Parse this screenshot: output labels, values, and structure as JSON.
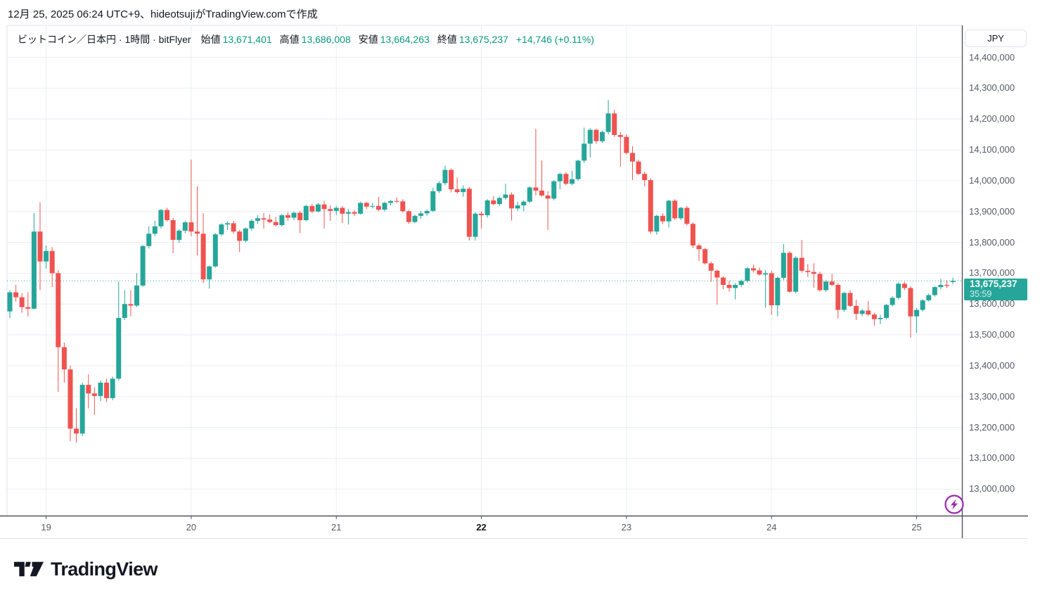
{
  "header": {
    "attribution": "12月 25, 2025 06:24 UTC+9、hideotsujiがTradingView.comで作成"
  },
  "legend": {
    "symbol_title": "ビットコイン／日本円 · 1時間 · bitFlyer",
    "items": [
      {
        "label": "始値",
        "value": "13,671,401"
      },
      {
        "label": "高値",
        "value": "13,686,008"
      },
      {
        "label": "安値",
        "value": "13,664,263"
      },
      {
        "label": "終値",
        "value": "13,675,237"
      }
    ],
    "change": "+14,746 (+0.11%)"
  },
  "price_axis": {
    "currency_button": "JPY",
    "badge": {
      "price": "13,675,237",
      "countdown": "35:59"
    }
  },
  "footer": {
    "logo_text": "TradingView"
  },
  "colors": {
    "up": "#26a69a",
    "down": "#ef5350",
    "legend_value": "#089981",
    "grid": "#e9eef4",
    "frame": "#e0e3eb",
    "axis_line": "#50535e",
    "text_dark": "#131722",
    "text_gray": "#555a64",
    "purple": "#9c27b0",
    "badge_bg": "#26a69a"
  },
  "chart_data": {
    "type": "candlestick",
    "title": "ビットコイン／日本円",
    "interval": "1時間",
    "exchange": "bitFlyer",
    "currency": "JPY",
    "last_price": 13675237,
    "last_bar": {
      "open": 13671401,
      "high": 13686008,
      "low": 13664263,
      "close": 13675237,
      "change": 14746,
      "change_pct": 0.11
    },
    "grid": true,
    "legend_position": "top-left",
    "price_ticks": [
      {
        "value": 14400000,
        "label": "14,400,000"
      },
      {
        "value": 14300000,
        "label": "14,300,000"
      },
      {
        "value": 14200000,
        "label": "14,200,000"
      },
      {
        "value": 14100000,
        "label": "14,100,000"
      },
      {
        "value": 14000000,
        "label": "14,000,000"
      },
      {
        "value": 13900000,
        "label": "13,900,000"
      },
      {
        "value": 13800000,
        "label": "13,800,000"
      },
      {
        "value": 13700000,
        "label": "13,700,000"
      },
      {
        "value": 13600000,
        "label": "13,600,000"
      },
      {
        "value": 13500000,
        "label": "13,500,000"
      },
      {
        "value": 13400000,
        "label": "13,400,000"
      },
      {
        "value": 13300000,
        "label": "13,300,000"
      },
      {
        "value": 13200000,
        "label": "13,200,000"
      },
      {
        "value": 13100000,
        "label": "13,100,000"
      },
      {
        "value": 13000000,
        "label": "13,000,000"
      }
    ],
    "visible_price_range": [
      12913000,
      14504000
    ],
    "time_ticks": [
      {
        "label": "19",
        "bold": false,
        "candle_index": 6
      },
      {
        "label": "20",
        "bold": false,
        "candle_index": 30
      },
      {
        "label": "21",
        "bold": false,
        "candle_index": 54
      },
      {
        "label": "22",
        "bold": true,
        "candle_index": 78
      },
      {
        "label": "23",
        "bold": false,
        "candle_index": 102
      },
      {
        "label": "24",
        "bold": false,
        "candle_index": 126
      },
      {
        "label": "25",
        "bold": false,
        "candle_index": 150
      }
    ],
    "candles_per_day": 24,
    "unit": "thousand JPY",
    "candles_ohlc": [
      [
        13576,
        13645,
        13555,
        13638
      ],
      [
        13638,
        13662,
        13608,
        13622
      ],
      [
        13622,
        13635,
        13572,
        13590
      ],
      [
        13590,
        13638,
        13560,
        13585
      ],
      [
        13585,
        13895,
        13582,
        13835
      ],
      [
        13835,
        13930,
        13645,
        13738
      ],
      [
        13738,
        13790,
        13715,
        13772
      ],
      [
        13772,
        13785,
        13655,
        13700
      ],
      [
        13700,
        13710,
        13315,
        13460
      ],
      [
        13460,
        13475,
        13345,
        13388
      ],
      [
        13388,
        13400,
        13155,
        13196
      ],
      [
        13196,
        13262,
        13150,
        13180
      ],
      [
        13180,
        13345,
        13172,
        13338
      ],
      [
        13338,
        13372,
        13262,
        13310
      ],
      [
        13310,
        13330,
        13240,
        13302
      ],
      [
        13302,
        13352,
        13285,
        13345
      ],
      [
        13345,
        13358,
        13282,
        13295
      ],
      [
        13295,
        13365,
        13288,
        13358
      ],
      [
        13358,
        13672,
        13352,
        13555
      ],
      [
        13555,
        13645,
        13548,
        13600
      ],
      [
        13600,
        13645,
        13560,
        13595
      ],
      [
        13595,
        13700,
        13590,
        13660
      ],
      [
        13660,
        13792,
        13655,
        13788
      ],
      [
        13788,
        13852,
        13780,
        13828
      ],
      [
        13828,
        13870,
        13820,
        13852
      ],
      [
        13852,
        13908,
        13845,
        13905
      ],
      [
        13905,
        13912,
        13868,
        13872
      ],
      [
        13872,
        13880,
        13765,
        13808
      ],
      [
        13808,
        13842,
        13798,
        13838
      ],
      [
        13838,
        13870,
        13830,
        13865
      ],
      [
        13865,
        14068,
        13820,
        13835
      ],
      [
        13835,
        13982,
        13758,
        13828
      ],
      [
        13828,
        13895,
        13668,
        13680
      ],
      [
        13680,
        13725,
        13650,
        13722
      ],
      [
        13722,
        13830,
        13718,
        13826
      ],
      [
        13826,
        13862,
        13820,
        13858
      ],
      [
        13858,
        13868,
        13840,
        13862
      ],
      [
        13862,
        13870,
        13828,
        13835
      ],
      [
        13835,
        13840,
        13768,
        13805
      ],
      [
        13805,
        13848,
        13800,
        13845
      ],
      [
        13845,
        13875,
        13838,
        13870
      ],
      [
        13870,
        13888,
        13860,
        13878
      ],
      [
        13878,
        13895,
        13845,
        13874
      ],
      [
        13874,
        13890,
        13862,
        13866
      ],
      [
        13866,
        13882,
        13852,
        13856
      ],
      [
        13856,
        13892,
        13852,
        13888
      ],
      [
        13888,
        13898,
        13870,
        13880
      ],
      [
        13880,
        13900,
        13872,
        13896
      ],
      [
        13896,
        13902,
        13830,
        13872
      ],
      [
        13872,
        13922,
        13868,
        13918
      ],
      [
        13918,
        13925,
        13895,
        13900
      ],
      [
        13900,
        13928,
        13898,
        13923
      ],
      [
        13923,
        13935,
        13845,
        13908
      ],
      [
        13908,
        13920,
        13870,
        13902
      ],
      [
        13902,
        13918,
        13888,
        13912
      ],
      [
        13912,
        13918,
        13862,
        13893
      ],
      [
        13893,
        13908,
        13858,
        13898
      ],
      [
        13898,
        13905,
        13885,
        13893
      ],
      [
        13893,
        13932,
        13890,
        13928
      ],
      [
        13928,
        13932,
        13908,
        13916
      ],
      [
        13916,
        13928,
        13910,
        13918
      ],
      [
        13918,
        13947,
        13902,
        13906
      ],
      [
        13906,
        13932,
        13900,
        13928
      ],
      [
        13928,
        13938,
        13920,
        13934
      ],
      [
        13934,
        13946,
        13928,
        13933
      ],
      [
        13933,
        13940,
        13896,
        13901
      ],
      [
        13901,
        13905,
        13860,
        13866
      ],
      [
        13866,
        13890,
        13862,
        13886
      ],
      [
        13886,
        13902,
        13876,
        13894
      ],
      [
        13894,
        13906,
        13886,
        13902
      ],
      [
        13902,
        13977,
        13898,
        13966
      ],
      [
        13966,
        13998,
        13960,
        13992
      ],
      [
        13992,
        14049,
        13985,
        14035
      ],
      [
        14035,
        14040,
        13962,
        13972
      ],
      [
        13972,
        14010,
        13958,
        13963
      ],
      [
        13963,
        13985,
        13948,
        13974
      ],
      [
        13974,
        13980,
        13806,
        13818
      ],
      [
        13818,
        13898,
        13806,
        13893
      ],
      [
        13893,
        13900,
        13845,
        13888
      ],
      [
        13888,
        13940,
        13880,
        13936
      ],
      [
        13936,
        13950,
        13920,
        13924
      ],
      [
        13924,
        13948,
        13918,
        13944
      ],
      [
        13944,
        13990,
        13938,
        13955
      ],
      [
        13955,
        13962,
        13871,
        13910
      ],
      [
        13910,
        13932,
        13902,
        13920
      ],
      [
        13920,
        13936,
        13900,
        13932
      ],
      [
        13932,
        13982,
        13928,
        13978
      ],
      [
        13978,
        14168,
        13952,
        13968
      ],
      [
        13968,
        14066,
        13948,
        13952
      ],
      [
        13952,
        13966,
        13840,
        13942
      ],
      [
        13942,
        14002,
        13936,
        13998
      ],
      [
        13998,
        14026,
        13972,
        14022
      ],
      [
        14022,
        14028,
        13985,
        13990
      ],
      [
        13990,
        14032,
        13985,
        14005
      ],
      [
        14005,
        14068,
        14000,
        14065
      ],
      [
        14065,
        14172,
        14058,
        14120
      ],
      [
        14120,
        14170,
        14075,
        14165
      ],
      [
        14165,
        14168,
        14120,
        14128
      ],
      [
        14128,
        14162,
        14122,
        14158
      ],
      [
        14158,
        14262,
        14150,
        14218
      ],
      [
        14218,
        14230,
        14142,
        14148
      ],
      [
        14148,
        14158,
        14045,
        14142
      ],
      [
        14142,
        14150,
        14085,
        14090
      ],
      [
        14090,
        14112,
        14002,
        14062
      ],
      [
        14062,
        14068,
        14018,
        14022
      ],
      [
        14022,
        14030,
        13982,
        14002
      ],
      [
        14002,
        14008,
        13828,
        13835
      ],
      [
        13835,
        13890,
        13825,
        13886
      ],
      [
        13886,
        13895,
        13860,
        13868
      ],
      [
        13868,
        13938,
        13848,
        13935
      ],
      [
        13935,
        13940,
        13872,
        13878
      ],
      [
        13878,
        13915,
        13872,
        13912
      ],
      [
        13912,
        13918,
        13855,
        13860
      ],
      [
        13860,
        13865,
        13782,
        13790
      ],
      [
        13790,
        13795,
        13740,
        13778
      ],
      [
        13778,
        13782,
        13728,
        13732
      ],
      [
        13732,
        13738,
        13672,
        13708
      ],
      [
        13708,
        13712,
        13598,
        13686
      ],
      [
        13686,
        13690,
        13648,
        13662
      ],
      [
        13662,
        13676,
        13640,
        13652
      ],
      [
        13652,
        13668,
        13615,
        13662
      ],
      [
        13662,
        13680,
        13655,
        13675
      ],
      [
        13675,
        13720,
        13670,
        13716
      ],
      [
        13716,
        13728,
        13702,
        13709
      ],
      [
        13709,
        13718,
        13692,
        13696
      ],
      [
        13696,
        13710,
        13588,
        13700
      ],
      [
        13700,
        13708,
        13565,
        13596
      ],
      [
        13596,
        13690,
        13560,
        13685
      ],
      [
        13685,
        13795,
        13678,
        13766
      ],
      [
        13766,
        13772,
        13636,
        13640
      ],
      [
        13640,
        13755,
        13635,
        13750
      ],
      [
        13750,
        13808,
        13702,
        13708
      ],
      [
        13708,
        13730,
        13688,
        13704
      ],
      [
        13704,
        13732,
        13653,
        13698
      ],
      [
        13698,
        13705,
        13640,
        13645
      ],
      [
        13645,
        13678,
        13640,
        13673
      ],
      [
        13673,
        13698,
        13658,
        13662
      ],
      [
        13662,
        13668,
        13552,
        13581
      ],
      [
        13581,
        13640,
        13575,
        13636
      ],
      [
        13636,
        13645,
        13590,
        13594
      ],
      [
        13594,
        13614,
        13548,
        13568
      ],
      [
        13568,
        13584,
        13560,
        13579
      ],
      [
        13579,
        13610,
        13562,
        13566
      ],
      [
        13566,
        13572,
        13530,
        13551
      ],
      [
        13551,
        13565,
        13535,
        13555
      ],
      [
        13555,
        13600,
        13550,
        13597
      ],
      [
        13597,
        13625,
        13592,
        13620
      ],
      [
        13620,
        13670,
        13615,
        13666
      ],
      [
        13666,
        13672,
        13645,
        13652
      ],
      [
        13652,
        13658,
        13491,
        13560
      ],
      [
        13560,
        13588,
        13507,
        13581
      ],
      [
        13581,
        13616,
        13576,
        13612
      ],
      [
        13612,
        13634,
        13608,
        13629
      ],
      [
        13629,
        13658,
        13624,
        13655
      ],
      [
        13655,
        13682,
        13648,
        13662
      ],
      [
        13662,
        13678,
        13652,
        13659
      ],
      [
        13671.401,
        13686.008,
        13664.263,
        13675.237
      ]
    ]
  }
}
